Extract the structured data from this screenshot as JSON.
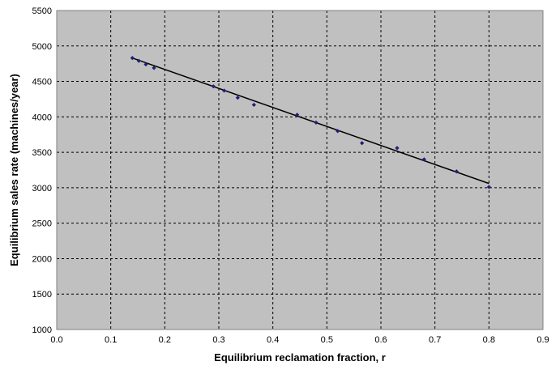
{
  "chart_data": {
    "type": "scatter",
    "title": "",
    "xlabel": "Equilibrium reclamation fraction, r",
    "ylabel": "Equilibrium sales rate (machines/year)",
    "xlim": [
      0,
      0.9
    ],
    "ylim": [
      1000,
      5500
    ],
    "x_ticks": [
      0,
      0.1,
      0.2,
      0.3,
      0.4,
      0.5,
      0.6,
      0.7,
      0.8,
      0.9
    ],
    "x_tick_labels": [
      "0.0",
      "0.1",
      "0.2",
      "0.3",
      "0.4",
      "0.5",
      "0.6",
      "0.7",
      "0.8",
      "0.9"
    ],
    "y_ticks": [
      1000,
      1500,
      2000,
      2500,
      3000,
      3500,
      4000,
      4500,
      5000,
      5500
    ],
    "y_tick_labels": [
      "1000",
      "1500",
      "2000",
      "2500",
      "3000",
      "3500",
      "4000",
      "4500",
      "5000",
      "5500"
    ],
    "grid": true,
    "plot_background": "#c0c0c0",
    "marker_color": "#1f1f7a",
    "trendline_color": "#000000",
    "series": [
      {
        "x": [
          0.14,
          0.152,
          0.165,
          0.18,
          0.29,
          0.31,
          0.335,
          0.365,
          0.445,
          0.48,
          0.52,
          0.565,
          0.63,
          0.68,
          0.74,
          0.8
        ],
        "y": [
          4830,
          4790,
          4740,
          4690,
          4430,
          4370,
          4270,
          4170,
          4030,
          3920,
          3800,
          3630,
          3560,
          3400,
          3230,
          3010
        ]
      }
    ],
    "trendline": {
      "x": [
        0.14,
        0.8
      ],
      "y": [
        4830,
        3060
      ]
    }
  }
}
